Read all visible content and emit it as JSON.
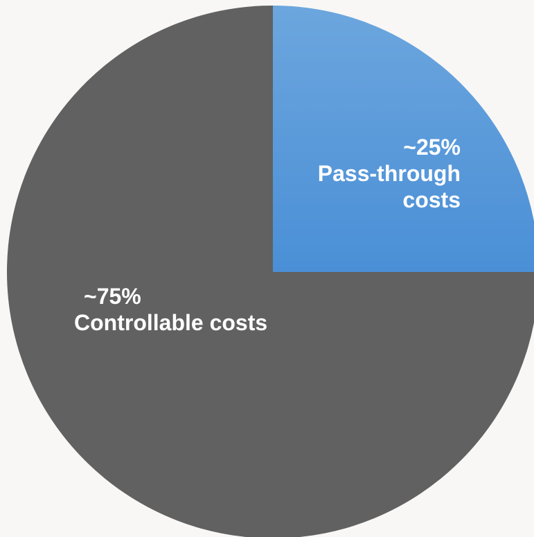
{
  "chart_data": {
    "type": "pie",
    "title": "",
    "slices": [
      {
        "label": "Pass-through costs",
        "value": 25,
        "value_label": "~25%",
        "color": "#4a8fd6",
        "color_top": "#6ca6de"
      },
      {
        "label": "Controllable costs",
        "value": 75,
        "value_label": "~75%",
        "color": "#616161"
      }
    ],
    "start_angle": "12 o'clock",
    "direction": "clockwise",
    "legend": "none"
  },
  "labels": {
    "pass": {
      "pct": "~25%",
      "line1": "Pass-through",
      "line2": "costs"
    },
    "ctrl": {
      "pct": "~75%",
      "line1": "Controllable costs"
    }
  },
  "background": "#f8f7f5"
}
